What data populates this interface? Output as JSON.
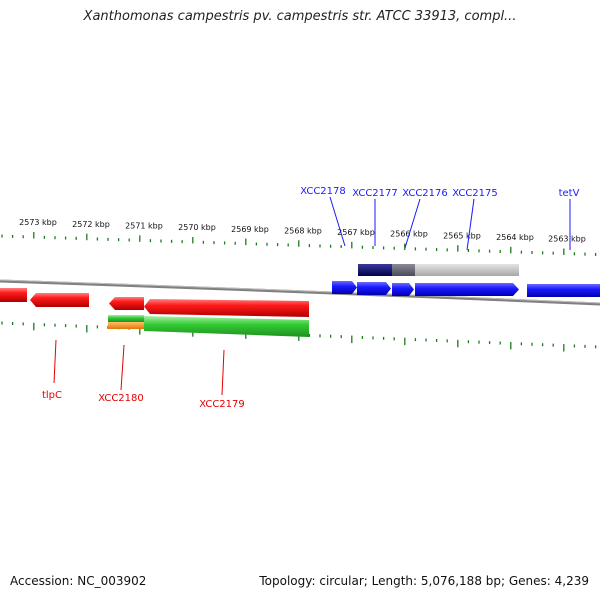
{
  "title": "Xanthomonas campestris pv. campestris str. ATCC 33913, compl...",
  "footer": {
    "accession": "Accession: NC_003902",
    "topology": "Topology: circular; Length: 5,076,188 bp; Genes: 4,239"
  },
  "colors": {
    "forward_gene": "#1a1aff",
    "reverse_gene": "#e60000",
    "tick": "#1e7a1e",
    "backbone": "#808080",
    "feature_green": "#33cc33",
    "feature_orange": "#ff8c00",
    "feature_navy": "#000066",
    "feature_gray": "#c0c0c0"
  },
  "kbp_labels": [
    "2573 kbp",
    "2572 kbp",
    "2571 kbp",
    "2570 kbp",
    "2569 kbp",
    "2568 kbp",
    "2567 kbp",
    "2566 kbp",
    "2565 kbp",
    "2564 kbp",
    "2563 kbp"
  ],
  "forward_genes": [
    "XCC2178",
    "XCC2177",
    "XCC2176",
    "XCC2175",
    "tetV"
  ],
  "reverse_genes": [
    "tlpC",
    "XCC2180",
    "XCC2179"
  ]
}
